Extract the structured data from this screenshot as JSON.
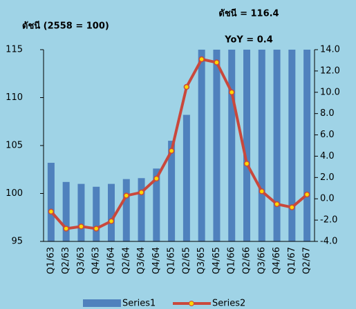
{
  "chart_data": {
    "type": "bar-line",
    "title": "ดัชนี (2558 = 100)",
    "annotations": [
      "ดัชนี = 116.4",
      "YoY = 0.4"
    ],
    "categories": [
      "Q1/63",
      "Q2/63",
      "Q3/63",
      "Q4/63",
      "Q1/64",
      "Q2/64",
      "Q3/64",
      "Q4/64",
      "Q1/65",
      "Q2/65",
      "Q3/65",
      "Q4/65",
      "Q1/66",
      "Q2/66",
      "Q3/66",
      "Q4/66",
      "Q1/67",
      "Q2/67"
    ],
    "series": [
      {
        "name": "Series1",
        "type": "bar",
        "color": "#4f81bd",
        "values": [
          103.2,
          101.2,
          101.0,
          100.7,
          101.0,
          101.5,
          101.6,
          102.6,
          105.5,
          108.2,
          115.5,
          116.0,
          116.1,
          116.0,
          116.1,
          116.2,
          116.0,
          116.4
        ]
      },
      {
        "name": "Series2",
        "type": "line",
        "axis": "y2",
        "color": "#c9483c",
        "marker_color": "#ffd700",
        "values": [
          -1.2,
          -2.8,
          -2.6,
          -2.8,
          -2.1,
          0.3,
          0.6,
          1.9,
          4.5,
          10.5,
          13.1,
          12.8,
          10.0,
          3.3,
          0.7,
          -0.5,
          -0.8,
          0.4
        ]
      }
    ],
    "ylim": [
      95,
      115
    ],
    "yticks": [
      95,
      100,
      105,
      110,
      115
    ],
    "y2lim": [
      -4,
      14
    ],
    "y2ticks": [
      {
        "value": -4,
        "label": "-4.0"
      },
      {
        "value": -2,
        "label": "-2.0"
      },
      {
        "value": 0,
        "label": "0.0"
      },
      {
        "value": 2,
        "label": "2.0"
      },
      {
        "value": 4,
        "label": "4.0"
      },
      {
        "value": 6,
        "label": "6.0"
      },
      {
        "value": 8,
        "label": "8.0"
      },
      {
        "value": 10,
        "label": "10.0"
      },
      {
        "value": 12,
        "label": "12.0"
      },
      {
        "value": 14,
        "label": "14.0"
      }
    ]
  }
}
